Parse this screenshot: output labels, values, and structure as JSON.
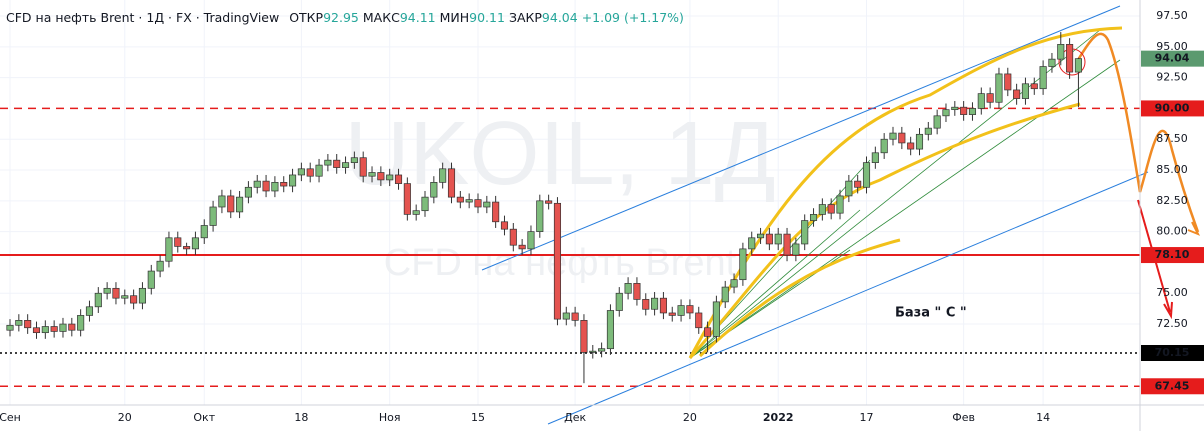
{
  "chart_data": {
    "type": "candlestick",
    "title": "CFD на нефть Brent · 1Д · FX · TradingView",
    "info": [
      {
        "name": "ОТКР",
        "text": "92.95"
      },
      {
        "name": "МАКС",
        "text": "94.11"
      },
      {
        "name": "МИН",
        "text": "90.11"
      },
      {
        "name": "ЗАКР",
        "text": "94.04"
      }
    ],
    "change": "+1.09 (+1.17%)",
    "watermark": {
      "symbol": "UKOIL, 1Д",
      "description": "CFD на нефть Brent"
    },
    "annotation": "База  \" C \"",
    "up_color": "#7dbb7b",
    "down_color": "#e4534f",
    "categories": [
      "Сен",
      null,
      null,
      null,
      null,
      null,
      null,
      null,
      null,
      null,
      null,
      null,
      null,
      "20",
      null,
      null,
      null,
      null,
      null,
      null,
      null,
      null,
      "Окт",
      null,
      null,
      null,
      null,
      null,
      null,
      null,
      null,
      null,
      null,
      "18",
      null,
      null,
      null,
      null,
      null,
      null,
      null,
      null,
      null,
      "Ноя",
      null,
      null,
      null,
      null,
      null,
      null,
      null,
      null,
      null,
      "15",
      null,
      null,
      null,
      null,
      null,
      null,
      null,
      null,
      null,
      null,
      "Дек",
      null,
      null,
      null,
      null,
      null,
      null,
      null,
      null,
      null,
      null,
      null,
      null,
      "20",
      null,
      null,
      null,
      null,
      null,
      null,
      null,
      null,
      null,
      "2022",
      null,
      null,
      null,
      null,
      null,
      null,
      null,
      null,
      null,
      "17",
      null,
      null,
      null,
      null,
      null,
      null,
      null,
      null,
      null,
      null,
      "Фев",
      null,
      null,
      null,
      null,
      null,
      null,
      null,
      null,
      "14",
      null,
      null,
      null,
      null
    ],
    "open": [
      72.0,
      72.4,
      72.8,
      72.2,
      71.8,
      72.3,
      71.9,
      72.5,
      72.0,
      73.2,
      73.9,
      75.0,
      75.4,
      74.6,
      74.8,
      74.2,
      75.4,
      76.8,
      77.6,
      79.5,
      78.8,
      78.6,
      79.5,
      80.5,
      82.0,
      82.9,
      81.6,
      82.8,
      83.6,
      84.1,
      83.3,
      84.0,
      83.7,
      84.6,
      85.1,
      84.5,
      85.4,
      85.8,
      85.2,
      85.6,
      86.0,
      84.5,
      84.8,
      84.2,
      84.6,
      83.9,
      81.4,
      81.7,
      82.8,
      84.0,
      85.1,
      82.8,
      82.4,
      82.6,
      82.0,
      82.4,
      80.8,
      80.2,
      78.9,
      78.6,
      80.0,
      82.5,
      82.3,
      72.9,
      73.4,
      72.8,
      70.2,
      70.3,
      70.5,
      73.6,
      75.0,
      75.8,
      74.5,
      73.7,
      74.6,
      73.4,
      73.2,
      74.0,
      73.4,
      72.2,
      71.5,
      74.3,
      75.5,
      76.1,
      78.6,
      79.5,
      79.8,
      79.0,
      79.8,
      78.1,
      79.0,
      80.9,
      81.4,
      82.2,
      81.5,
      82.9,
      84.1,
      83.6,
      85.6,
      86.4,
      87.5,
      88.0,
      87.2,
      86.7,
      87.9,
      88.4,
      89.4,
      89.9,
      90.1,
      89.5,
      90.0,
      91.2,
      90.5,
      92.8,
      91.5,
      90.8,
      92.0,
      91.6,
      93.4,
      94.0,
      95.2,
      92.95
    ],
    "high": [
      72.9,
      73.3,
      73.3,
      72.7,
      72.8,
      72.8,
      73.0,
      73.0,
      73.7,
      74.4,
      75.5,
      75.9,
      75.9,
      75.3,
      75.3,
      75.9,
      77.3,
      78.1,
      80.0,
      80.0,
      79.1,
      80.0,
      81.0,
      82.5,
      83.4,
      83.4,
      83.3,
      84.1,
      84.6,
      84.6,
      84.5,
      84.5,
      85.1,
      85.6,
      85.6,
      85.9,
      86.3,
      86.3,
      86.1,
      86.5,
      86.5,
      85.3,
      85.3,
      85.1,
      85.1,
      84.4,
      82.2,
      83.3,
      84.5,
      85.6,
      85.6,
      83.3,
      83.1,
      83.1,
      82.9,
      82.9,
      81.3,
      80.7,
      79.4,
      80.5,
      83.0,
      83.0,
      82.8,
      73.9,
      73.9,
      73.3,
      70.8,
      71.0,
      74.1,
      75.5,
      76.3,
      76.3,
      75.0,
      75.1,
      75.1,
      73.9,
      74.5,
      74.5,
      73.9,
      72.7,
      74.8,
      76.0,
      76.6,
      79.1,
      80.0,
      80.3,
      80.3,
      80.3,
      80.3,
      79.5,
      81.4,
      81.9,
      82.7,
      82.7,
      83.4,
      84.6,
      84.6,
      86.1,
      86.9,
      88.0,
      88.5,
      88.5,
      87.7,
      88.4,
      88.9,
      89.9,
      90.4,
      90.6,
      90.6,
      90.5,
      91.7,
      91.7,
      93.3,
      93.3,
      92.0,
      92.5,
      92.5,
      93.9,
      94.5,
      96.2,
      95.7,
      94.11
    ],
    "low": [
      71.5,
      71.9,
      71.7,
      71.3,
      71.3,
      71.4,
      71.4,
      71.5,
      71.5,
      72.7,
      73.4,
      74.5,
      74.1,
      74.1,
      73.7,
      73.7,
      74.9,
      76.3,
      77.1,
      78.3,
      78.1,
      78.1,
      79.0,
      80.0,
      81.5,
      81.1,
      81.1,
      82.3,
      83.1,
      82.8,
      82.8,
      83.2,
      83.2,
      84.1,
      84.0,
      84.0,
      84.9,
      84.7,
      84.7,
      85.1,
      84.0,
      84.0,
      83.7,
      83.7,
      83.4,
      80.9,
      80.9,
      81.2,
      82.3,
      83.5,
      82.3,
      81.9,
      81.9,
      81.5,
      81.5,
      80.3,
      79.7,
      78.4,
      78.1,
      78.1,
      79.5,
      81.8,
      72.4,
      72.4,
      72.3,
      67.7,
      69.7,
      69.8,
      70.0,
      73.1,
      74.5,
      74.0,
      73.2,
      73.2,
      72.9,
      72.7,
      72.7,
      72.9,
      71.7,
      70.2,
      71.0,
      73.8,
      75.0,
      75.6,
      78.1,
      79.0,
      78.5,
      78.5,
      77.6,
      77.6,
      78.5,
      80.4,
      80.9,
      81.0,
      81.0,
      82.4,
      83.1,
      83.1,
      85.1,
      85.9,
      87.0,
      86.7,
      86.2,
      86.2,
      87.4,
      87.9,
      88.9,
      89.4,
      89.0,
      89.0,
      89.5,
      90.0,
      90.0,
      91.0,
      90.3,
      90.3,
      91.1,
      91.1,
      92.9,
      93.5,
      92.4,
      90.11
    ],
    "close": [
      72.4,
      72.8,
      72.2,
      71.8,
      72.3,
      71.9,
      72.5,
      72.0,
      73.2,
      73.9,
      75.0,
      75.4,
      74.6,
      74.8,
      74.2,
      75.4,
      76.8,
      77.6,
      79.5,
      78.8,
      78.6,
      79.5,
      80.5,
      82.0,
      82.9,
      81.6,
      82.8,
      83.6,
      84.1,
      83.3,
      84.0,
      83.7,
      84.6,
      85.1,
      84.5,
      85.4,
      85.8,
      85.2,
      85.6,
      86.0,
      84.5,
      84.8,
      84.2,
      84.6,
      83.9,
      81.4,
      81.7,
      82.8,
      84.0,
      85.1,
      82.8,
      82.4,
      82.6,
      82.0,
      82.4,
      80.8,
      80.2,
      78.9,
      78.6,
      80.0,
      82.5,
      82.3,
      72.9,
      73.4,
      72.8,
      70.2,
      70.3,
      70.5,
      73.6,
      75.0,
      75.8,
      74.5,
      73.7,
      74.6,
      73.4,
      73.2,
      74.0,
      73.4,
      72.2,
      71.5,
      74.3,
      75.5,
      76.1,
      78.6,
      79.5,
      79.8,
      79.0,
      79.8,
      78.1,
      79.0,
      80.9,
      81.4,
      82.2,
      81.5,
      82.9,
      84.1,
      83.6,
      85.6,
      86.4,
      87.5,
      88.0,
      87.2,
      86.7,
      87.9,
      88.4,
      89.4,
      89.9,
      90.1,
      89.5,
      90.0,
      91.2,
      90.5,
      92.8,
      91.5,
      90.8,
      92.0,
      91.6,
      93.4,
      94.0,
      95.2,
      92.95,
      94.04
    ],
    "ylim": [
      65.93,
      98.8
    ],
    "yticks": [
      {
        "value": 97.5,
        "label": "97.50"
      },
      {
        "value": 95,
        "label": "95.00"
      },
      {
        "value": 92.5,
        "label": "92.50"
      },
      {
        "value": 87.5,
        "label": "87.50"
      },
      {
        "value": 85,
        "label": "85.00"
      },
      {
        "value": 82.5,
        "label": "82.50"
      },
      {
        "value": 80,
        "label": "80.00"
      },
      {
        "value": 75,
        "label": "75.00"
      },
      {
        "value": 72.5,
        "label": "72.50"
      }
    ],
    "levels": [
      {
        "value": 90,
        "label": "90.00",
        "style": "dashed",
        "color": "#e51c1c"
      },
      {
        "value": 78.1,
        "label": "78.10",
        "style": "solid",
        "color": "#e51c1c"
      },
      {
        "value": 70.15,
        "label": "70.15",
        "style": "dotted",
        "color": "#000000"
      },
      {
        "value": 67.45,
        "label": "67.45",
        "style": "dashed",
        "color": "#e51c1c"
      }
    ],
    "price_label": {
      "value": 94.04,
      "label": "94.04",
      "color": "#5b9a6f"
    },
    "grid": true
  }
}
